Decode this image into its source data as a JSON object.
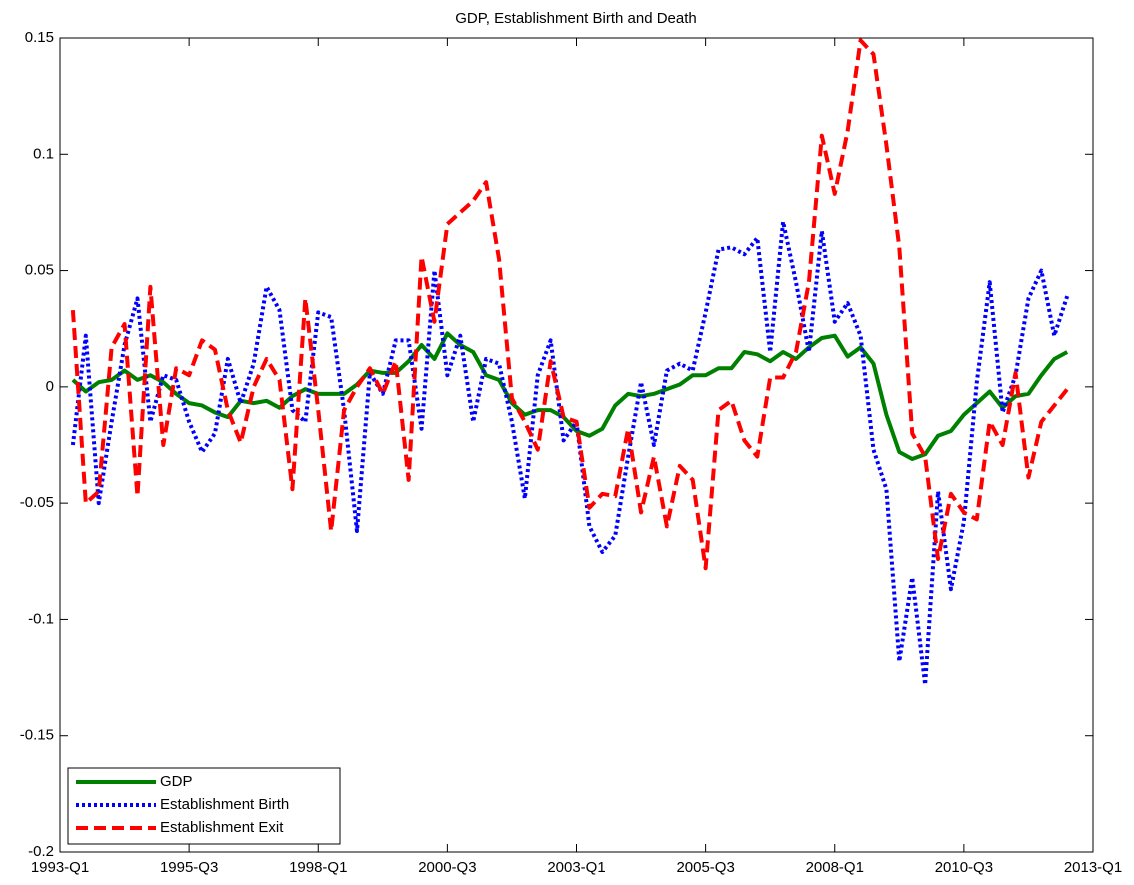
{
  "chart_data": {
    "type": "line",
    "title": "GDP, Establishment Birth and Death",
    "categories": [
      "1993-Q1",
      null,
      null,
      null,
      null,
      null,
      null,
      null,
      null,
      null,
      "1995-Q3",
      null,
      null,
      null,
      null,
      null,
      null,
      null,
      null,
      null,
      "1998-Q1",
      null,
      null,
      null,
      null,
      null,
      null,
      null,
      null,
      null,
      "2000-Q3",
      null,
      null,
      null,
      null,
      null,
      null,
      null,
      null,
      null,
      "2003-Q1",
      null,
      null,
      null,
      null,
      null,
      null,
      null,
      null,
      null,
      "2005-Q3",
      null,
      null,
      null,
      null,
      null,
      null,
      null,
      null,
      null,
      "2008-Q1",
      null,
      null,
      null,
      null,
      null,
      null,
      null,
      null,
      null,
      "2010-Q3",
      null,
      null,
      null,
      null,
      null,
      null,
      null,
      null,
      null,
      "2013-Q1"
    ],
    "series": [
      {
        "name": "GDP",
        "color": "#008000",
        "linestyle": "solid",
        "values": [
          null,
          0.003,
          -0.002,
          0.002,
          0.003,
          0.007,
          0.003,
          0.005,
          0.002,
          -0.003,
          -0.007,
          -0.008,
          -0.011,
          -0.013,
          -0.006,
          -0.007,
          -0.006,
          -0.009,
          -0.004,
          -0.001,
          -0.003,
          -0.003,
          -0.003,
          0.001,
          0.007,
          0.006,
          0.006,
          0.011,
          0.018,
          0.012,
          0.023,
          0.018,
          0.015,
          0.005,
          0.003,
          -0.007,
          -0.012,
          -0.01,
          -0.01,
          -0.013,
          -0.019,
          -0.021,
          -0.018,
          -0.008,
          -0.003,
          -0.004,
          -0.003,
          -0.001,
          0.001,
          0.005,
          0.005,
          0.008,
          0.008,
          0.015,
          0.014,
          0.011,
          0.015,
          0.012,
          0.017,
          0.021,
          0.022,
          0.013,
          0.017,
          0.01,
          -0.012,
          -0.028,
          -0.031,
          -0.029,
          -0.021,
          -0.019,
          -0.012,
          -0.007,
          -0.002,
          -0.009,
          -0.004,
          -0.003,
          0.005,
          0.012,
          0.015,
          null,
          null
        ]
      },
      {
        "name": "Establishment Birth",
        "color": "#0000ff",
        "linestyle": "dotted",
        "values": [
          null,
          -0.025,
          0.022,
          -0.05,
          -0.015,
          0.018,
          0.038,
          -0.015,
          0.005,
          0.003,
          -0.015,
          -0.028,
          -0.02,
          0.012,
          -0.007,
          0.01,
          0.043,
          0.033,
          -0.01,
          -0.015,
          0.032,
          0.03,
          -0.01,
          -0.062,
          0.006,
          -0.003,
          0.02,
          0.02,
          -0.018,
          0.05,
          0.005,
          0.022,
          -0.015,
          0.012,
          0.01,
          -0.015,
          -0.048,
          0.005,
          0.02,
          -0.023,
          -0.015,
          -0.06,
          -0.071,
          -0.064,
          -0.03,
          0.002,
          -0.025,
          0.007,
          0.01,
          0.007,
          0.032,
          0.059,
          0.06,
          0.057,
          0.064,
          0.015,
          0.071,
          0.045,
          0.015,
          0.067,
          0.028,
          0.036,
          0.022,
          -0.027,
          -0.044,
          -0.118,
          -0.082,
          -0.128,
          -0.045,
          -0.087,
          -0.058,
          0.002,
          0.045,
          -0.011,
          0.005,
          0.038,
          0.05,
          0.022,
          0.039,
          null,
          null
        ]
      },
      {
        "name": "Establishment Exit",
        "color": "#ff0000",
        "linestyle": "dashed",
        "values": [
          null,
          0.033,
          -0.05,
          -0.045,
          0.017,
          0.027,
          -0.047,
          0.043,
          -0.025,
          0.008,
          0.005,
          0.02,
          0.016,
          -0.01,
          -0.024,
          0.0,
          0.012,
          0.003,
          -0.044,
          0.038,
          -0.01,
          -0.062,
          -0.01,
          0.0,
          0.008,
          -0.003,
          0.011,
          -0.04,
          0.056,
          0.028,
          0.07,
          0.075,
          0.08,
          0.088,
          0.055,
          -0.005,
          -0.015,
          -0.027,
          0.011,
          -0.013,
          -0.015,
          -0.052,
          -0.046,
          -0.047,
          -0.018,
          -0.054,
          -0.03,
          -0.06,
          -0.034,
          -0.04,
          -0.078,
          -0.01,
          -0.006,
          -0.023,
          -0.03,
          0.004,
          0.004,
          0.015,
          0.045,
          0.108,
          0.083,
          0.11,
          0.149,
          0.143,
          0.104,
          0.06,
          -0.02,
          -0.03,
          -0.074,
          -0.046,
          -0.054,
          -0.057,
          -0.015,
          -0.025,
          0.006,
          -0.039,
          -0.015,
          -0.008,
          -0.001,
          null,
          null
        ]
      }
    ],
    "ylim": [
      -0.2,
      0.15
    ],
    "yticks": [
      -0.2,
      -0.15,
      -0.1,
      -0.05,
      0,
      0.05,
      0.1,
      0.15
    ],
    "legend": "lower left",
    "grid": false
  }
}
